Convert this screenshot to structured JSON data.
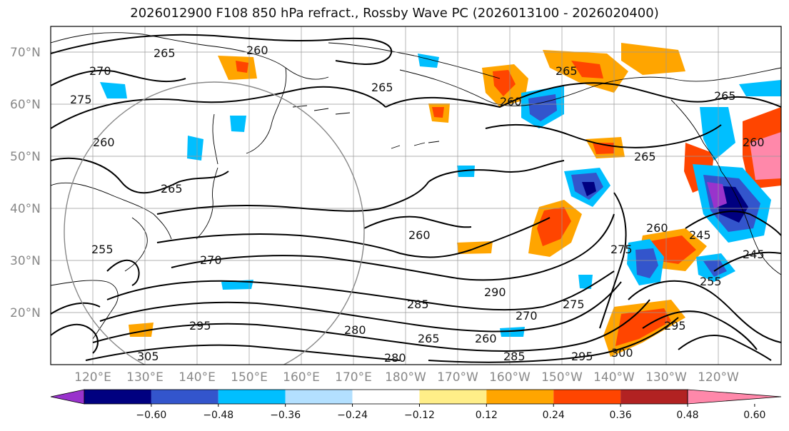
{
  "title": "2026012900 F108 850 hPa refract., Rossby Wave PC (2026013100 - 2026020400)",
  "lat_labels": [
    "70°N",
    "60°N",
    "50°N",
    "40°N",
    "30°N",
    "20°N"
  ],
  "lon_labels": [
    "120°E",
    "130°E",
    "140°E",
    "150°E",
    "160°E",
    "170°E",
    "180°W",
    "170°W",
    "160°W",
    "150°W",
    "140°W",
    "130°W",
    "120°W"
  ],
  "contour_labels": [
    "265",
    "260",
    "270",
    "275",
    "260",
    "265",
    "265",
    "260",
    "265",
    "265",
    "265",
    "260",
    "260",
    "270",
    "260",
    "245",
    "255",
    "245",
    "275",
    "290",
    "285",
    "280",
    "265",
    "260",
    "270",
    "275",
    "295",
    "300",
    "285",
    "280",
    "295",
    "255",
    "305",
    "295"
  ],
  "colorbar": {
    "colors": [
      "#9933cc",
      "#000080",
      "#3355cc",
      "#00bfff",
      "#b3e0ff",
      "#ffffff",
      "#ffee88",
      "#ffa500",
      "#ff4500",
      "#b22222",
      "#ff88aa"
    ],
    "ticks": [
      "−0.60",
      "−0.48",
      "−0.36",
      "−0.24",
      "−0.12",
      "0.12",
      "0.24",
      "0.36",
      "0.48",
      "0.60"
    ]
  }
}
